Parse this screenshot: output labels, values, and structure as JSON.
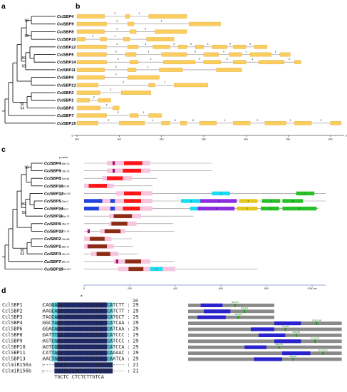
{
  "panels": {
    "a": "a",
    "b": "b",
    "c": "c",
    "d": "d"
  },
  "tree_ab": {
    "genes": [
      "CclSBP4",
      "CclSBP9",
      "CclSBP8",
      "CclSBP10",
      "CclSBP12",
      "CclSBP5",
      "CclSBP14",
      "CclSBP11",
      "CclSBP6",
      "CclSBP13",
      "CclSBP2",
      "CclSBP1",
      "CclSBP3",
      "CclSBP7",
      "CclSBP15"
    ],
    "bootstrap": [
      {
        "text": "96",
        "row": 0.5
      },
      {
        "text": "99",
        "row": 2.5
      },
      {
        "text": "89",
        "row": 5.4
      },
      {
        "text": "99",
        "row": 6.5
      },
      {
        "text": "50",
        "row": 11.5
      },
      {
        "text": "64",
        "row": 12.0
      }
    ]
  },
  "gene_structure": {
    "axis_ticks": [
      "0kb",
      "1kb",
      "2kb",
      "3kb",
      "4kb",
      "5kb",
      "6kb"
    ],
    "end_labels": [
      "5'",
      "3'"
    ],
    "rows": [
      {
        "introns": [
          "2",
          "1"
        ]
      },
      {
        "introns": [
          "2",
          "1"
        ]
      },
      {
        "introns": [
          "2",
          "1"
        ]
      },
      {
        "introns": [
          "2",
          "1"
        ]
      },
      {
        "introns": [
          "2",
          "1",
          "0",
          "0",
          "1",
          "2",
          "0"
        ]
      },
      {
        "introns": [
          "2",
          "1",
          "0",
          "0",
          "1",
          "2",
          "0"
        ]
      },
      {
        "introns": [
          "2",
          "1",
          "0",
          "0",
          "1",
          "2",
          "0"
        ]
      },
      {
        "introns": [
          "2",
          "1"
        ]
      },
      {
        "introns": [
          "2"
        ]
      },
      {
        "introns": [
          "2",
          "1"
        ]
      },
      {
        "introns": [
          "2"
        ]
      },
      {
        "introns": [
          "2"
        ]
      },
      {
        "introns": [
          "2"
        ]
      },
      {
        "introns": [
          "2",
          "1"
        ]
      },
      {
        "introns": [
          "2",
          "1",
          "0",
          "0",
          "1",
          "0",
          "1",
          "2",
          "0"
        ]
      }
    ]
  },
  "motif_panel": {
    "p_header": "p-value",
    "genes": [
      "CclSBP4",
      "CclSBP9",
      "CclSBP8",
      "CclSBP10",
      "CclSBP12",
      "CclSBP5",
      "CclSBP14",
      "CclSBP11",
      "CclSBP6",
      "CclSBP13",
      "CclSBP2",
      "CclSBP1",
      "CclSBP3",
      "CclSBP7",
      "CclSBP15"
    ],
    "pvalues": [
      "7.80e-73",
      "2.78e-73",
      "3.02e-64",
      "3.02e-64",
      "6.28e-202",
      "5.00e-0",
      "5.00e-0",
      "4.65e-73",
      "1.06e-77",
      "5.17e-73",
      "7.44e-68",
      "3.88e-71",
      "9.32e-70",
      "1.66e-73",
      "2.34e-107"
    ],
    "bootstrap": [
      {
        "text": "96",
        "row": 0.5
      },
      {
        "text": "89",
        "row": 5.4
      },
      {
        "text": "99",
        "row": 6.5
      },
      {
        "text": "50",
        "row": 11.5
      },
      {
        "text": "64",
        "row": 12.0
      }
    ],
    "axis_ticks": [
      "0",
      "200",
      "400",
      "600",
      "800",
      "1000 aa"
    ],
    "motif_numbers": [
      "1",
      "2",
      "3",
      "4",
      "5",
      "6"
    ]
  },
  "alignment": {
    "marker": "*",
    "ruler": "20",
    "rows": [
      {
        "name": "CclSBP1",
        "seq": "CAGGATGCTCTCTCTCTCTTGTCATCTT",
        "num": "29",
        "cleave": "500-527"
      },
      {
        "name": "CclSBP2",
        "seq": "AAGCATGCTCTCTCTCTCTTGTCATCTT",
        "num": "29",
        "cleave": "500-503"
      },
      {
        "name": "CclSBP3",
        "seq": "TAGCATGCTCTCTCTCTCTTGTCATGCT",
        "num": "29",
        "cleave": "500-509"
      },
      {
        "name": "CclSBP4",
        "seq": "GGCTATGCTCTCTCTCTCTTGTCATCAA",
        "num": "29",
        "cleave": "1236-1248"
      },
      {
        "name": "CclSBP6",
        "seq": "GGACATGCTCTCTCTCTCTTGTCATCAA",
        "num": "29",
        "cleave": "761-780"
      },
      {
        "name": "CclSBP8",
        "seq": "GATTTTGCTCTCTCTCTCTTGTCATCCC",
        "num": "29",
        "cleave": "900-903"
      },
      {
        "name": "CclSBP9",
        "seq": "AGTCGTGCTCTCTCTCTCTTGTCATCCC",
        "num": "29",
        "cleave": "1112-1131"
      },
      {
        "name": "CclSBP10",
        "seq": "AGTCGTGCTCTCTCTCTCTTGTCATCCA",
        "num": "29",
        "cleave": "690-700"
      },
      {
        "name": "CclSBP11",
        "seq": "CATTATGCTCTCTCTCTCTTGTCAAAAC",
        "num": "29",
        "cleave": "1157-1176"
      },
      {
        "name": "CclSBP13",
        "seq": "AACTGTGCTCTCTCTCTCTTGTCAATCA",
        "num": "29",
        "cleave": "910-917"
      },
      {
        "name": "CclmiR156a",
        "seq": "----TGCTCTCTCTCTCTTGTCAG----",
        "num": "21",
        "cleave": ""
      },
      {
        "name": "CclmiR156b",
        "seq": "----TGCTCTCTCTCTCTTGTCAG----",
        "num": "21",
        "cleave": ""
      }
    ],
    "consensus": "TGCTC CTCTCTTGTCA"
  },
  "colors": {
    "exon": "#fbcd5f",
    "exon_edge": "#d7a12c",
    "intron": "#888888",
    "motif1": "#ff1616",
    "motif2": "#18dcf0",
    "motif3": "#28c028",
    "motif4": "#8c2ee0",
    "motif5": "#e4c81c",
    "motif6": "#2244dd",
    "motif_dark": "#8b2c14",
    "motif_mag": "#a01070",
    "sbp_box": "#f7c6de"
  }
}
